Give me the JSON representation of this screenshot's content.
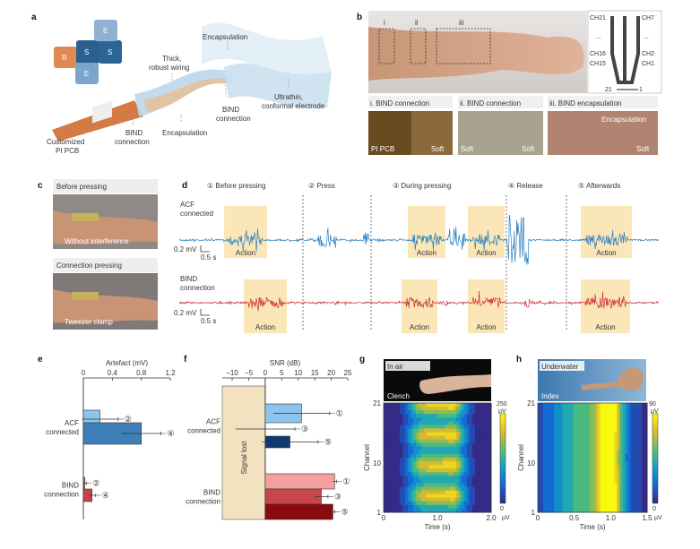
{
  "panels": {
    "a": {
      "label": "a",
      "puzzle": [
        "R",
        "S",
        "S",
        "E",
        "E"
      ],
      "callouts": {
        "encapsulation_top": "Encapsulation",
        "wiring_1": "Thick,",
        "wiring_2": "robust wiring",
        "electrode_1": "Ultrathin,",
        "electrode_2": "conformal electrode",
        "bind_right_1": "BIND",
        "bind_right_2": "connection",
        "encapsulation_bottom": "Encapsulation",
        "bind_left_1": "BIND",
        "bind_left_2": "connection",
        "pcb_1": "Customized",
        "pcb_2": "PI PCB"
      }
    },
    "b": {
      "label": "b",
      "regions": [
        "i",
        "ii",
        "iii"
      ],
      "channels": {
        "left_top": "CH21",
        "left_mid": "CH16",
        "left_bot": "CH15",
        "right_top": "CH7",
        "right_mid": "CH2",
        "right_bot": "CH1",
        "ellipsis": "...",
        "axis_left": "21",
        "axis_right": "1"
      },
      "insets": [
        {
          "title": "i. BIND connection",
          "left": "PI PCB",
          "right": "Soft"
        },
        {
          "title": "ii. BIND connection",
          "left": "Soft",
          "right": "Soft"
        },
        {
          "title": "iii. BIND encapsulation",
          "top": "Encapsulation",
          "right": "Soft"
        }
      ]
    },
    "c": {
      "label": "c",
      "photos": [
        {
          "title": "Before pressing",
          "caption": "Without interference"
        },
        {
          "title": "Connection pressing",
          "caption": "Tweezer clamp"
        }
      ]
    },
    "d": {
      "label": "d",
      "stages": [
        "① Before pressing",
        "② Press",
        "③ During pressing",
        "④ Release",
        "⑤ Afterwards"
      ],
      "traces": [
        {
          "name_1": "ACF",
          "name_2": "connected",
          "color": "#2a7fc0",
          "scale_v": "0.2 mV",
          "scale_t": "0.5 s"
        },
        {
          "name_1": "BIND",
          "name_2": "connection",
          "color": "#c8303a",
          "scale_v": "0.2 mV",
          "scale_t": "0.5 s"
        }
      ],
      "action_label": "Action",
      "action_color": "#fbe6b8"
    }
  },
  "chart_data": [
    {
      "panel": "e",
      "type": "bar",
      "orientation": "horizontal",
      "xlabel": "Artefact (mV)",
      "xlim": [
        0,
        1.2
      ],
      "ticks": [
        "0",
        "0.4",
        "0.8",
        "1.2"
      ],
      "groups": [
        {
          "name_1": "ACF",
          "name_2": "connected",
          "bars": [
            {
              "label": "②",
              "value": 0.23,
              "err": 0.25,
              "color": "#8cc4ec"
            },
            {
              "label": "④",
              "value": 0.8,
              "err": 0.27,
              "color": "#3f7fb9"
            }
          ]
        },
        {
          "name_1": "BIND",
          "name_2": "connection",
          "bars": [
            {
              "label": "②",
              "value": 0.02,
              "err": 0.02,
              "color": "#d9585b"
            },
            {
              "label": "④",
              "value": 0.12,
              "err": 0.05,
              "color": "#c9424a"
            }
          ]
        }
      ]
    },
    {
      "panel": "f",
      "type": "bar",
      "orientation": "horizontal",
      "xlabel": "SNR (dB)",
      "xlim": [
        -13,
        25
      ],
      "ticks": [
        "−10",
        "−5",
        "0",
        "5",
        "10",
        "15",
        "20",
        "25"
      ],
      "tick_values": [
        -10,
        -5,
        0,
        5,
        10,
        15,
        20,
        25
      ],
      "shaded_label": "Signal lost",
      "shaded_color": "#f3e2c0",
      "groups": [
        {
          "name_1": "ACF",
          "name_2": "connected",
          "bars": [
            {
              "label": "①",
              "value": 11,
              "err": 8.5,
              "color": "#8cc4ec"
            },
            {
              "label": "③",
              "value": 0,
              "err": 9,
              "color": "#3f7fb9"
            },
            {
              "label": "⑤",
              "value": 7.5,
              "err": 8.5,
              "color": "#0e3a73"
            }
          ]
        },
        {
          "name_1": "BIND",
          "name_2": "connection",
          "bars": [
            {
              "label": "①",
              "value": 21,
              "err": 0.6,
              "color": "#f4a0a0"
            },
            {
              "label": "③",
              "value": 17,
              "err": 2,
              "color": "#c9464c"
            },
            {
              "label": "⑤",
              "value": 20.5,
              "err": 0.6,
              "color": "#8a0a0d"
            }
          ]
        }
      ]
    },
    {
      "panel": "g",
      "type": "heatmap",
      "photo_tag": "In air",
      "photo_caption": "Clench",
      "xlabel": "Time (s)",
      "ylabel": "Channel",
      "xticks": [
        "0",
        "1.0",
        "2.0"
      ],
      "yticks": [
        "1",
        "10",
        "21"
      ],
      "xlim": [
        0,
        2.0
      ],
      "ylim": [
        1,
        21
      ],
      "colorbar": {
        "max": "250",
        "min": "0",
        "unit": "µV"
      }
    },
    {
      "panel": "h",
      "type": "heatmap",
      "photo_tag": "Underwater",
      "photo_caption": "Index",
      "xlabel": "Time (s)",
      "ylabel": "Channel",
      "xticks": [
        "0",
        "0.5",
        "1.0",
        "1.5"
      ],
      "yticks": [
        "1",
        "10",
        "21"
      ],
      "xlim": [
        0,
        1.5
      ],
      "ylim": [
        1,
        21
      ],
      "colorbar": {
        "max": "90",
        "min": "0",
        "unit": "µV"
      }
    }
  ]
}
